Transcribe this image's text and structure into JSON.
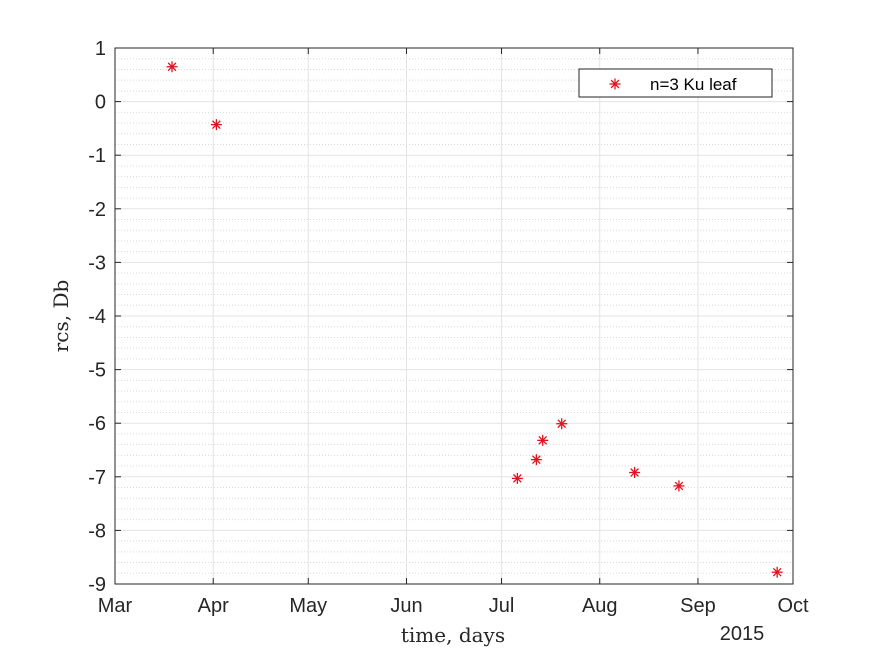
{
  "chart_data": {
    "type": "scatter",
    "title": "",
    "xlabel": "time, days",
    "ylabel": "rcs, Db",
    "x_axis_type": "date",
    "year_label": "2015",
    "xlim": [
      "2015-03-01",
      "2015-10-01"
    ],
    "ylim": [
      -9,
      1
    ],
    "x_ticks": [
      {
        "date": "2015-03-01",
        "label": "Mar"
      },
      {
        "date": "2015-04-01",
        "label": "Apr"
      },
      {
        "date": "2015-05-01",
        "label": "May"
      },
      {
        "date": "2015-06-01",
        "label": "Jun"
      },
      {
        "date": "2015-07-01",
        "label": "Jul"
      },
      {
        "date": "2015-08-01",
        "label": "Aug"
      },
      {
        "date": "2015-09-01",
        "label": "Sep"
      },
      {
        "date": "2015-10-01",
        "label": "Oct"
      }
    ],
    "y_ticks": [
      1,
      0,
      -1,
      -2,
      -3,
      -4,
      -5,
      -6,
      -7,
      -8,
      -9
    ],
    "grid": true,
    "minor_grid": true,
    "legend_position": "top-right",
    "series": [
      {
        "name": "n=3 Ku leaf",
        "marker": "asterisk",
        "color": "#e0141e",
        "points": [
          {
            "x": "2015-03-19",
            "y": 0.65
          },
          {
            "x": "2015-04-02",
            "y": -0.43
          },
          {
            "x": "2015-07-06",
            "y": -7.03
          },
          {
            "x": "2015-07-12",
            "y": -6.68
          },
          {
            "x": "2015-07-14",
            "y": -6.32
          },
          {
            "x": "2015-07-20",
            "y": -6.01
          },
          {
            "x": "2015-08-12",
            "y": -6.92
          },
          {
            "x": "2015-08-26",
            "y": -7.17
          },
          {
            "x": "2015-09-26",
            "y": -8.78
          }
        ]
      }
    ]
  }
}
